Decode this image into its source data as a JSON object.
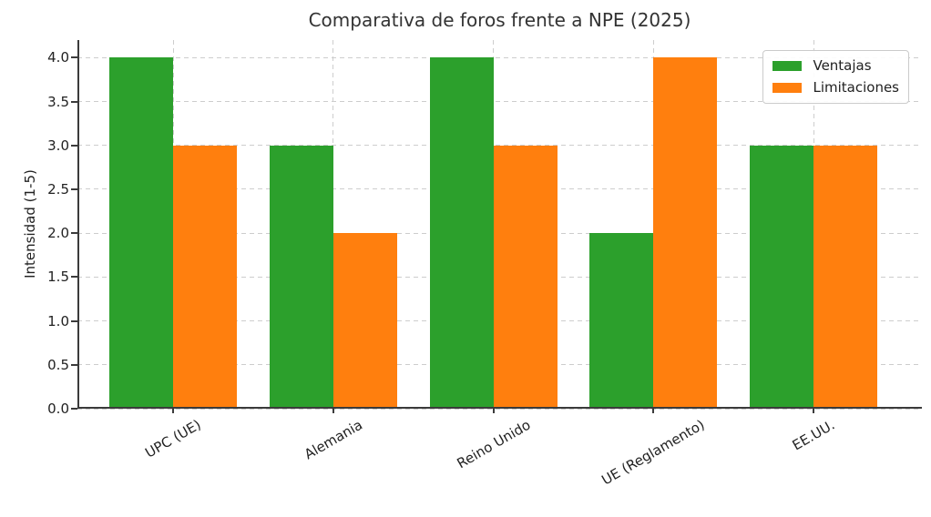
{
  "chart_data": {
    "type": "bar",
    "title": "Comparativa de foros frente a NPE (2025)",
    "ylabel": "Intensidad (1-5)",
    "xlabel": "",
    "categories": [
      "UPC (UE)",
      "Alemania",
      "Reino Unido",
      "UE (Reglamento)",
      "EE.UU."
    ],
    "series": [
      {
        "name": "Ventajas",
        "color": "#2ca02c",
        "values": [
          4,
          3,
          4,
          2,
          3
        ]
      },
      {
        "name": "Limitaciones",
        "color": "#ff7f0e",
        "values": [
          3,
          2,
          3,
          4,
          3
        ]
      }
    ],
    "ylim": [
      0,
      4.2
    ],
    "yticks": [
      0.0,
      0.5,
      1.0,
      1.5,
      2.0,
      2.5,
      3.0,
      3.5,
      4.0
    ],
    "ytick_labels": [
      "0.0",
      "0.5",
      "1.0",
      "1.5",
      "2.0",
      "2.5",
      "3.0",
      "3.5",
      "4.0"
    ],
    "xtick_rotation": 30,
    "grid": true,
    "grid_style": "dashed",
    "grid_color": "#cdcdcd",
    "spine_color": "#3b3b3b",
    "text_color": "#222222",
    "title_color": "#333333",
    "background_color": "#ffffff",
    "legend_position": "upper right"
  }
}
